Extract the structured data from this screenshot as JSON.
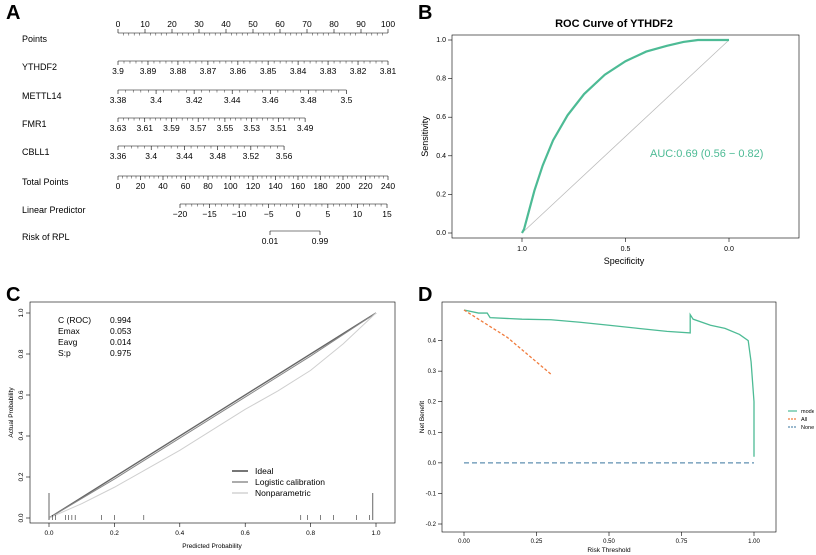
{
  "panel_letters": {
    "a": "A",
    "b": "B",
    "c": "C",
    "d": "D"
  },
  "colors": {
    "accent": "#4dbb95",
    "orange": "#f07c3e",
    "gray_line": "#999999",
    "none_line": "#5f8fb0"
  },
  "chart_data": [
    {
      "panel": "A",
      "type": "nomogram",
      "rows": [
        {
          "label": "Points",
          "min": 0,
          "max": 100,
          "ticks": [
            "0",
            "10",
            "20",
            "30",
            "40",
            "50",
            "60",
            "70",
            "80",
            "90",
            "100"
          ],
          "values": [
            0,
            10,
            20,
            30,
            40,
            50,
            60,
            70,
            80,
            90,
            100
          ],
          "tick_above": true
        },
        {
          "label": "YTHDF2",
          "min": 0,
          "max": 100,
          "ticks": [
            "3.9",
            "3.89",
            "3.88",
            "3.87",
            "3.86",
            "3.85",
            "3.84",
            "3.83",
            "3.82",
            "3.81"
          ],
          "values": [
            0,
            11.1,
            22.2,
            33.3,
            44.4,
            55.6,
            66.7,
            77.8,
            88.9,
            100
          ],
          "tick_above": false
        },
        {
          "label": "METTL14",
          "min": 0,
          "max": 100,
          "ticks": [
            "3.38",
            "3.4",
            "3.42",
            "3.44",
            "3.46",
            "3.48",
            "3.5"
          ],
          "values": [
            0,
            14.1,
            28.2,
            42.3,
            56.4,
            70.5,
            84.6
          ],
          "tick_above": false
        },
        {
          "label": "FMR1",
          "min": 0,
          "max": 100,
          "ticks": [
            "3.63",
            "3.61",
            "3.59",
            "3.57",
            "3.55",
            "3.53",
            "3.51",
            "3.49"
          ],
          "values": [
            0,
            9.9,
            19.8,
            29.7,
            39.6,
            49.5,
            59.4,
            69.3
          ],
          "tick_above": false
        },
        {
          "label": "CBLL1",
          "min": 0,
          "max": 100,
          "ticks": [
            "3.36",
            "3.4",
            "3.44",
            "3.48",
            "3.52",
            "3.56"
          ],
          "values": [
            0,
            12.3,
            24.6,
            36.9,
            49.2,
            61.5
          ],
          "tick_above": false
        },
        {
          "label": "Total Points",
          "min": 0,
          "max": 240,
          "ticks": [
            "0",
            "20",
            "40",
            "60",
            "80",
            "100",
            "120",
            "140",
            "160",
            "180",
            "200",
            "220",
            "240"
          ],
          "values": [
            0,
            20,
            40,
            60,
            80,
            100,
            120,
            140,
            160,
            180,
            200,
            220,
            240
          ],
          "tick_above": false
        },
        {
          "label": "Linear Predictor",
          "min": -20,
          "max": 15,
          "ticks": [
            "−20",
            "−15",
            "−10",
            "−5",
            "0",
            "5",
            "10",
            "15"
          ],
          "values": [
            -20,
            -15,
            -10,
            -5,
            0,
            5,
            10,
            15
          ],
          "tick_above": false
        },
        {
          "label": "Risk of RPL",
          "min": 0,
          "max": 1,
          "ticks": [
            "0.01",
            "0.99"
          ],
          "values": [
            0.01,
            0.99
          ],
          "tick_above": false
        }
      ]
    },
    {
      "panel": "B",
      "type": "line",
      "title": "ROC Curve of YTHDF2",
      "xlabel": "Specificity",
      "ylabel": "Sensitivity",
      "xlim": [
        1.0,
        0.0
      ],
      "ylim": [
        0.0,
        1.0
      ],
      "x_ticks": [
        "1.0",
        "0.5",
        "0.0"
      ],
      "x_tick_values": [
        1.0,
        0.5,
        0.0
      ],
      "y_ticks": [
        "0.0",
        "0.2",
        "0.4",
        "0.6",
        "0.8",
        "1.0"
      ],
      "y_tick_values": [
        0.0,
        0.2,
        0.4,
        0.6,
        0.8,
        1.0
      ],
      "auc_label": "AUC:0.69 (0.56 − 0.82)",
      "series": [
        {
          "name": "ROC",
          "specificity": [
            1.0,
            0.99,
            0.97,
            0.94,
            0.9,
            0.85,
            0.78,
            0.7,
            0.6,
            0.5,
            0.4,
            0.3,
            0.22,
            0.15,
            0.08,
            0.02,
            0.0
          ],
          "sensitivity": [
            0.0,
            0.02,
            0.1,
            0.22,
            0.35,
            0.48,
            0.61,
            0.72,
            0.82,
            0.89,
            0.94,
            0.97,
            0.99,
            1.0,
            1.0,
            1.0,
            1.0
          ]
        }
      ]
    },
    {
      "panel": "C",
      "type": "line",
      "xlabel": "Predicted Probability",
      "ylabel": "Actual Probability",
      "xlim": [
        0.0,
        1.0
      ],
      "ylim": [
        0.0,
        1.0
      ],
      "x_ticks": [
        "0.0",
        "0.2",
        "0.4",
        "0.6",
        "0.8",
        "1.0"
      ],
      "x_tick_values": [
        0.0,
        0.2,
        0.4,
        0.6,
        0.8,
        1.0
      ],
      "y_ticks": [
        "0.0",
        "0.2",
        "0.4",
        "0.6",
        "0.8",
        "1.0"
      ],
      "y_tick_values": [
        0.0,
        0.2,
        0.4,
        0.6,
        0.8,
        1.0
      ],
      "stats": [
        {
          "label": "C (ROC)",
          "value": "0.994"
        },
        {
          "label": "Emax",
          "value": "0.053"
        },
        {
          "label": "Eavg",
          "value": "0.014"
        },
        {
          "label": "S:p",
          "value": "0.975"
        }
      ],
      "legend": [
        "Ideal",
        "Logistic calibration",
        "Nonparametric"
      ],
      "series": [
        {
          "name": "Ideal",
          "x": [
            0.0,
            1.0
          ],
          "y": [
            0.0,
            1.0
          ]
        },
        {
          "name": "Logistic calibration",
          "x": [
            0.0,
            0.2,
            0.4,
            0.6,
            0.8,
            1.0
          ],
          "y": [
            0.0,
            0.19,
            0.39,
            0.59,
            0.79,
            1.0
          ]
        },
        {
          "name": "Nonparametric",
          "x": [
            0.0,
            0.1,
            0.2,
            0.3,
            0.4,
            0.5,
            0.6,
            0.7,
            0.8,
            0.9,
            1.0
          ],
          "y": [
            0.0,
            0.07,
            0.15,
            0.24,
            0.33,
            0.43,
            0.53,
            0.62,
            0.72,
            0.85,
            1.0
          ]
        }
      ],
      "rug_bottom": [
        0.01,
        0.02,
        0.05,
        0.06,
        0.07,
        0.08,
        0.16,
        0.2,
        0.29,
        0.77,
        0.79,
        0.83,
        0.87,
        0.94,
        0.98
      ],
      "rug_top": [
        0.0,
        0.99
      ]
    },
    {
      "panel": "D",
      "type": "line",
      "xlabel": "Risk Threshold",
      "ylabel": "Net Benefit",
      "xlim": [
        0.0,
        1.0
      ],
      "ylim": [
        -0.2,
        0.5
      ],
      "x_ticks": [
        "0.00",
        "0.25",
        "0.50",
        "0.75",
        "1.00"
      ],
      "x_tick_values": [
        0.0,
        0.25,
        0.5,
        0.75,
        1.0
      ],
      "y_ticks": [
        "-0.2",
        "-0.1",
        "0.0",
        "0.1",
        "0.2",
        "0.3",
        "0.4"
      ],
      "y_tick_values": [
        -0.2,
        -0.1,
        0.0,
        0.1,
        0.2,
        0.3,
        0.4
      ],
      "legend": [
        "model",
        "All",
        "None"
      ],
      "series": [
        {
          "name": "model",
          "x": [
            0.0,
            0.05,
            0.08,
            0.09,
            0.2,
            0.3,
            0.4,
            0.5,
            0.6,
            0.7,
            0.78,
            0.78,
            0.79,
            0.85,
            0.9,
            0.95,
            0.98,
            0.99,
            1.0,
            1.0
          ],
          "y": [
            0.5,
            0.49,
            0.49,
            0.475,
            0.47,
            0.468,
            0.46,
            0.45,
            0.44,
            0.43,
            0.425,
            0.485,
            0.47,
            0.45,
            0.44,
            0.42,
            0.4,
            0.33,
            0.2,
            0.02
          ]
        },
        {
          "name": "All",
          "x": [
            0.0,
            0.05,
            0.1,
            0.15,
            0.2,
            0.25,
            0.3
          ],
          "y": [
            0.5,
            0.47,
            0.44,
            0.41,
            0.37,
            0.33,
            0.29
          ]
        },
        {
          "name": "None",
          "x": [
            0.0,
            1.0
          ],
          "y": [
            0.0,
            0.0
          ]
        }
      ]
    }
  ]
}
